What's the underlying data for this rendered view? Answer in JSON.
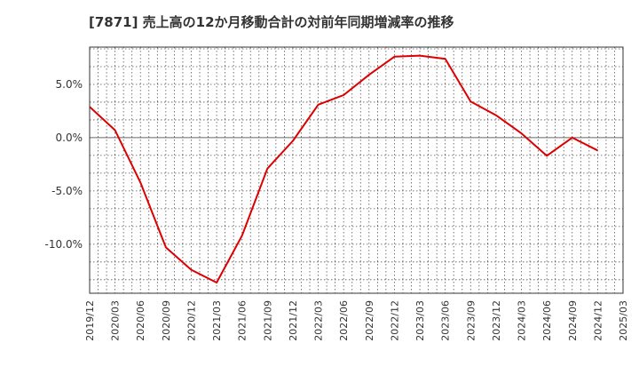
{
  "chart_data": {
    "type": "line",
    "title": "[7871]  売上高の12か月移動合計の対前年同期増減率の推移",
    "xlabel": "",
    "ylabel": "",
    "x": [
      "2019/12",
      "2020/03",
      "2020/06",
      "2020/09",
      "2020/12",
      "2021/03",
      "2021/06",
      "2021/09",
      "2021/12",
      "2022/03",
      "2022/06",
      "2022/09",
      "2022/12",
      "2023/03",
      "2023/06",
      "2023/09",
      "2023/12",
      "2024/03",
      "2024/06",
      "2024/09",
      "2024/12",
      "2025/03"
    ],
    "series": [
      {
        "name": "売上高の12か月移動合計の対前年同期増減率",
        "color": "#dd0000",
        "values": [
          2.9,
          0.7,
          -4.2,
          -10.3,
          -12.4,
          -13.6,
          -9.2,
          -2.9,
          -0.3,
          3.1,
          4.0,
          5.9,
          7.6,
          7.7,
          7.4,
          3.4,
          2.1,
          0.4,
          -1.7,
          0.0,
          -1.2,
          null
        ]
      }
    ],
    "ylim": [
      -14.6,
      8.5
    ],
    "yticks": [
      5.0,
      0.0,
      -5.0,
      -10.0
    ],
    "ytick_labels": [
      "5.0%",
      "0.0%",
      "-5.0%",
      "-10.0%"
    ],
    "grid": true,
    "minor_per_interval": 3
  }
}
